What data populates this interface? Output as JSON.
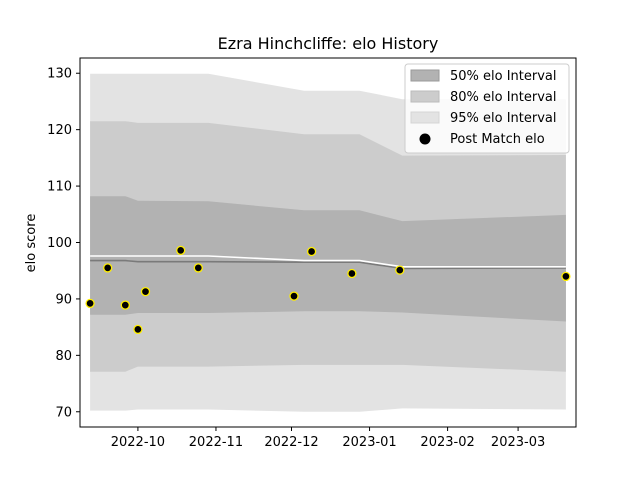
{
  "chart_data": {
    "type": "area",
    "title": "Ezra Hinchcliffe: elo History",
    "xlabel": "",
    "ylabel": "elo score",
    "x_axis": "date",
    "xlim": [
      "2022-09-08",
      "2023-03-24"
    ],
    "ylim": [
      67.3,
      132.7
    ],
    "x_ticks": [
      "2022-10-01",
      "2022-11-01",
      "2022-12-01",
      "2023-01-01",
      "2023-02-01",
      "2023-03-01"
    ],
    "x_tick_labels": [
      "2022-10",
      "2022-11",
      "2022-12",
      "2023-01",
      "2023-02",
      "2023-03"
    ],
    "y_ticks": [
      70,
      80,
      90,
      100,
      110,
      120,
      130
    ],
    "grid": false,
    "legend_position": "top-right",
    "legend": [
      "50% elo Interval",
      "80% elo Interval",
      "95% elo Interval",
      "Post Match elo"
    ],
    "bands": {
      "x": [
        "2022-09-12",
        "2022-09-26",
        "2022-10-01",
        "2022-10-29",
        "2022-12-06",
        "2022-12-28",
        "2023-01-14",
        "2023-03-20"
      ],
      "p50_low": [
        87.2,
        87.2,
        87.5,
        87.5,
        87.8,
        87.8,
        87.6,
        86.0
      ],
      "p50_high": [
        108.2,
        108.2,
        107.4,
        107.3,
        105.7,
        105.7,
        103.8,
        104.9
      ],
      "p80_low": [
        77.1,
        77.1,
        78.0,
        78.0,
        78.3,
        78.3,
        78.3,
        77.1
      ],
      "p80_high": [
        121.5,
        121.5,
        121.2,
        121.2,
        119.2,
        119.2,
        115.4,
        115.5
      ],
      "p95_low": [
        70.2,
        70.2,
        70.4,
        70.4,
        70.0,
        70.0,
        70.6,
        70.4
      ],
      "p95_high": [
        129.9,
        129.9,
        129.9,
        129.9,
        126.9,
        126.9,
        125.4,
        125.4
      ]
    },
    "series": [
      {
        "type": "line",
        "x": [
          "2022-09-12",
          "2022-09-26",
          "2022-10-01",
          "2022-10-29",
          "2022-12-06",
          "2022-12-28",
          "2023-01-14",
          "2023-03-20"
        ],
        "values": [
          96.8,
          96.8,
          96.6,
          96.6,
          96.5,
          96.5,
          95.4,
          95.5
        ]
      },
      {
        "type": "line",
        "x": [
          "2022-09-12",
          "2022-10-29",
          "2022-12-06",
          "2022-12-28",
          "2023-01-14",
          "2023-03-20"
        ],
        "values": [
          97.6,
          97.6,
          96.8,
          96.8,
          95.7,
          95.7
        ]
      },
      {
        "name": "Post Match elo",
        "type": "scatter",
        "x": [
          "2022-09-12",
          "2022-09-19",
          "2022-09-26",
          "2022-10-01",
          "2022-10-04",
          "2022-10-18",
          "2022-10-25",
          "2022-12-02",
          "2022-12-09",
          "2022-12-25",
          "2023-01-13",
          "2023-03-20"
        ],
        "values": [
          89.2,
          95.5,
          88.9,
          84.6,
          91.3,
          98.6,
          95.5,
          90.5,
          98.4,
          94.5,
          95.1,
          94.0
        ]
      }
    ],
    "colors": {
      "p50": "#b2b2b2",
      "p80": "#cccccc",
      "p95": "#e3e3e3",
      "median_line": "#7a7a7a",
      "mean_line": "#ffffff",
      "point_fill": "#000000",
      "point_edge": "#ffee00"
    }
  }
}
